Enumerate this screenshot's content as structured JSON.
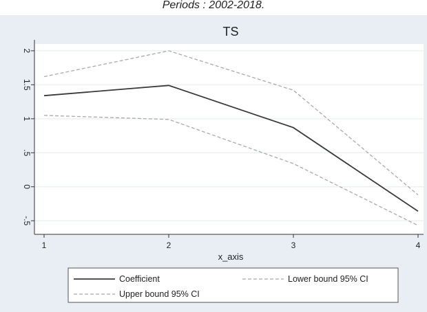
{
  "header": {
    "top_caption": "Periods : 2002-2018."
  },
  "chart_data": {
    "type": "line",
    "title": "TS",
    "xlabel": "x_axis",
    "ylabel": "",
    "x": [
      1,
      2,
      3,
      4
    ],
    "x_ticks": [
      "1",
      "2",
      "3",
      "4"
    ],
    "xlim": [
      1,
      4
    ],
    "ylim": [
      -0.7,
      2.1
    ],
    "y_ticks": [
      "-.5",
      "0",
      ".5",
      "1",
      "1.5",
      "2"
    ],
    "y_tick_values": [
      -0.5,
      0,
      0.5,
      1,
      1.5,
      2
    ],
    "grid": true,
    "legend_position": "bottom",
    "series": [
      {
        "name": "Coefficient",
        "values": [
          1.34,
          1.49,
          0.87,
          -0.36
        ],
        "color": "#3a3a3a",
        "style": "solid"
      },
      {
        "name": "Lower bound 95% CI",
        "values": [
          1.05,
          0.99,
          0.34,
          -0.57
        ],
        "color": "#a9a9a9",
        "style": "dashed"
      },
      {
        "name": "Upper bound 95% CI",
        "values": [
          1.62,
          2.0,
          1.42,
          -0.12
        ],
        "color": "#a9a9a9",
        "style": "dashed"
      }
    ],
    "colors": {
      "outer_background": "#e8eef3",
      "plot_background": "#ffffff",
      "grid": "#eaf2f3",
      "axis": "#333333"
    }
  }
}
